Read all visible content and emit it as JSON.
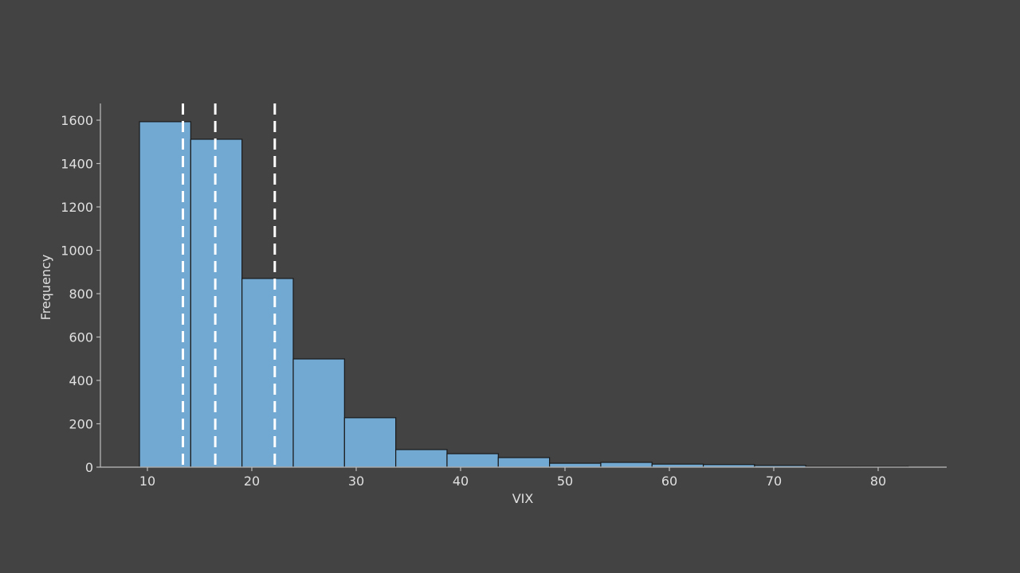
{
  "chart_data": {
    "type": "bar",
    "subtype": "histogram",
    "title": "",
    "xlabel": "VIX",
    "ylabel": "Frequency",
    "xlim": [
      5.5,
      86.5
    ],
    "ylim": [
      0,
      1680
    ],
    "xticks": [
      10,
      20,
      30,
      40,
      50,
      60,
      70,
      80
    ],
    "yticks": [
      0,
      200,
      400,
      600,
      800,
      1000,
      1200,
      1400,
      1600
    ],
    "grid": false,
    "bin_edges": [
      9.24,
      14.15,
      19.06,
      23.97,
      28.88,
      33.79,
      38.7,
      43.61,
      48.52,
      53.43,
      58.34,
      63.25,
      68.16,
      73.07,
      77.98,
      82.89
    ],
    "values": [
      1593,
      1512,
      870,
      499,
      228,
      81,
      62,
      44,
      18,
      22,
      14,
      12,
      8,
      3,
      3
    ],
    "bar_color": "#72a9d2",
    "edge_color": "#1a1a1a",
    "vlines": [
      {
        "x": 13.4,
        "style": "dashed",
        "color": "#ffffff"
      },
      {
        "x": 16.5,
        "style": "dashed",
        "color": "#ffffff"
      },
      {
        "x": 22.2,
        "style": "dashed",
        "color": "#ffffff"
      }
    ],
    "background": "#434343",
    "axis_color": "#bdbdbd"
  }
}
